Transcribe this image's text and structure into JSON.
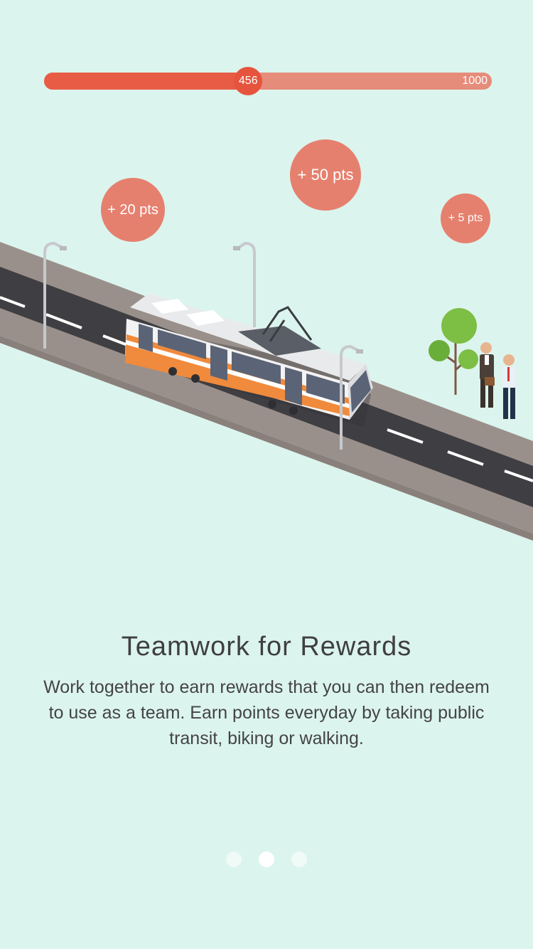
{
  "progress": {
    "current": "456",
    "max": "1000",
    "fraction": 0.456
  },
  "bubbles": {
    "b20": "+ 20 pts",
    "b50": "+ 50 pts",
    "b5": "+ 5 pts"
  },
  "content": {
    "title": "Teamwork for Rewards",
    "description": "Work together to earn rewards that you can then redeem to use as a team. Earn points everyday by taking public transit, biking or walking."
  },
  "pagination": {
    "count": 3,
    "active": 1
  },
  "colors": {
    "background": "#dcf4ee",
    "accent": "#e85c45",
    "bubble": "#e6806e",
    "tram_orange": "#f08a3c"
  },
  "icons": [
    "tram-illustration",
    "street-lamp",
    "tree",
    "businessman",
    "pedestrian"
  ]
}
